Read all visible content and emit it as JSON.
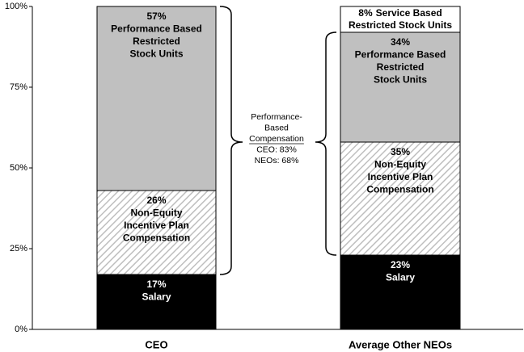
{
  "chart_data": {
    "type": "stacked_bar",
    "categories": [
      "CEO",
      "Average Other NEOs"
    ],
    "series": [
      {
        "name": "Salary",
        "color": "#000000",
        "text_color": "#ffffff",
        "values": [
          17,
          23
        ],
        "value_labels": [
          "17%",
          "23%"
        ]
      },
      {
        "name": "Non-Equity\nIncentive Plan\nCompensation",
        "color": "#bfbfbf",
        "pattern": "hatch",
        "text_color": "#000000",
        "values": [
          26,
          35
        ],
        "value_labels": [
          "26%",
          "35%"
        ]
      },
      {
        "name": "Performance Based\nRestricted\nStock Units",
        "color": "#c0c0c0",
        "text_color": "#000000",
        "values": [
          57,
          34
        ],
        "value_labels": [
          "57%",
          "34%"
        ]
      },
      {
        "name": "Service Based\nRestricted Stock Units",
        "color": "#ffffff",
        "text_color": "#000000",
        "values": [
          null,
          8
        ],
        "value_labels": [
          null,
          "8%"
        ]
      }
    ],
    "ylim": [
      0,
      100
    ],
    "yticks": [
      {
        "value": 0,
        "label": "0%"
      },
      {
        "value": 25,
        "label": "25%"
      },
      {
        "value": 50,
        "label": "50%"
      },
      {
        "value": 75,
        "label": "75%"
      },
      {
        "value": 100,
        "label": "100%"
      }
    ],
    "annotation": [
      "Performance-",
      "Based",
      "Compensation",
      "CEO: 83%",
      "NEOs: 68%"
    ]
  }
}
